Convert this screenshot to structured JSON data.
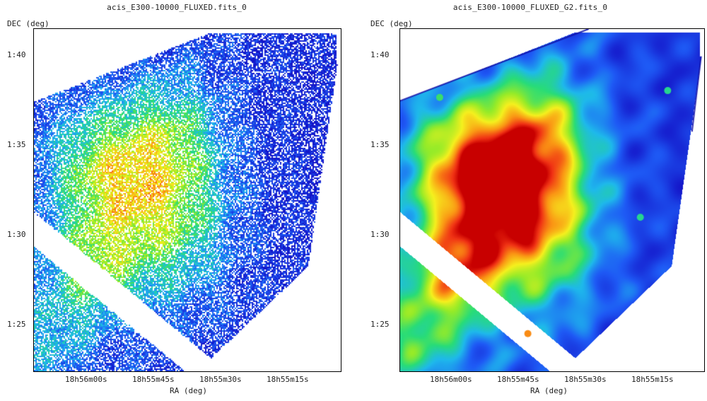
{
  "panels": [
    {
      "title": "acis_E300-10000_FLUXED.fits_0",
      "ylabel": "DEC (deg)",
      "xlabel": "RA (deg)",
      "y_ticks": [
        "1:40",
        "1:35",
        "1:30",
        "1:25"
      ],
      "x_ticks": [
        "18h56m00s",
        "18h55m45s",
        "18h55m30s",
        "18h55m15s"
      ],
      "rendering": "raw-pixel-counts",
      "colormap": "rainbow"
    },
    {
      "title": "acis_E300-10000_FLUXED_G2.fits_0",
      "ylabel": "DEC (deg)",
      "xlabel": "RA (deg)",
      "y_ticks": [
        "1:40",
        "1:35",
        "1:30",
        "1:25"
      ],
      "x_ticks": [
        "18h56m00s",
        "18h55m45s",
        "18h55m30s",
        "18h55m15s"
      ],
      "rendering": "gaussian-smoothed",
      "colormap": "rainbow"
    }
  ]
}
